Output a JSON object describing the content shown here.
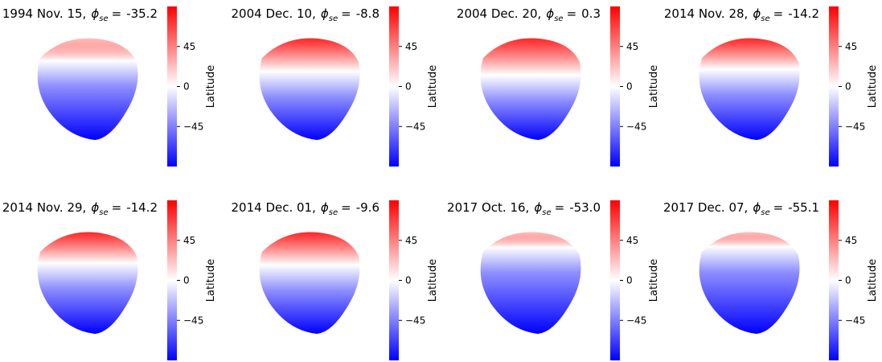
{
  "phi_label": {
    "symbol": "ϕ",
    "subscript": "se",
    "sign": "="
  },
  "chart_data": [
    {
      "type": "shape",
      "title": "1994 Nov. 15,",
      "phi_se": -35.2,
      "colorbar_label": "Latitude",
      "colormap": "bwr",
      "ylim": [
        -90,
        90
      ],
      "yticks": [
        {
          "value": -45,
          "label": "−45"
        },
        0,
        45
      ]
    },
    {
      "type": "shape",
      "title": "2004 Dec. 10,",
      "phi_se": -8.8,
      "colorbar_label": "Latitude",
      "colormap": "bwr",
      "ylim": [
        -90,
        90
      ],
      "yticks": [
        {
          "value": -45,
          "label": "−45"
        },
        0,
        45
      ]
    },
    {
      "type": "shape",
      "title": "2004 Dec. 20,",
      "phi_se": 0.3,
      "colorbar_label": "Latitude",
      "colormap": "bwr",
      "ylim": [
        -90,
        90
      ],
      "yticks": [
        {
          "value": -45,
          "label": "−45"
        },
        0,
        45
      ]
    },
    {
      "type": "shape",
      "title": "2014 Nov. 28,",
      "phi_se": -14.2,
      "colorbar_label": "Latitude",
      "colormap": "bwr",
      "ylim": [
        -90,
        90
      ],
      "yticks": [
        {
          "value": -45,
          "label": "−45"
        },
        0,
        45
      ]
    },
    {
      "type": "shape",
      "title": "2014 Nov. 29,",
      "phi_se": -14.2,
      "colorbar_label": "Latitude",
      "colormap": "bwr",
      "ylim": [
        -90,
        90
      ],
      "yticks": [
        {
          "value": -45,
          "label": "−45"
        },
        0,
        45
      ]
    },
    {
      "type": "shape",
      "title": "2014 Dec. 01,",
      "phi_se": -9.6,
      "colorbar_label": "Latitude",
      "colormap": "bwr",
      "ylim": [
        -90,
        90
      ],
      "yticks": [
        {
          "value": -45,
          "label": "−45"
        },
        0,
        45
      ]
    },
    {
      "type": "shape",
      "title": "2017 Oct. 16,",
      "phi_se": {
        "value": -53,
        "label": "-53.0"
      },
      "colorbar_label": "Latitude",
      "colormap": "bwr",
      "ylim": [
        -90,
        90
      ],
      "yticks": [
        {
          "value": -45,
          "label": "−45"
        },
        0,
        45
      ]
    },
    {
      "type": "shape",
      "title": "2017 Dec. 07,",
      "phi_se": -55.1,
      "colorbar_label": "Latitude",
      "colormap": "bwr",
      "ylim": [
        -90,
        90
      ],
      "yticks": [
        {
          "value": -45,
          "label": "−45"
        },
        0,
        45
      ]
    }
  ]
}
